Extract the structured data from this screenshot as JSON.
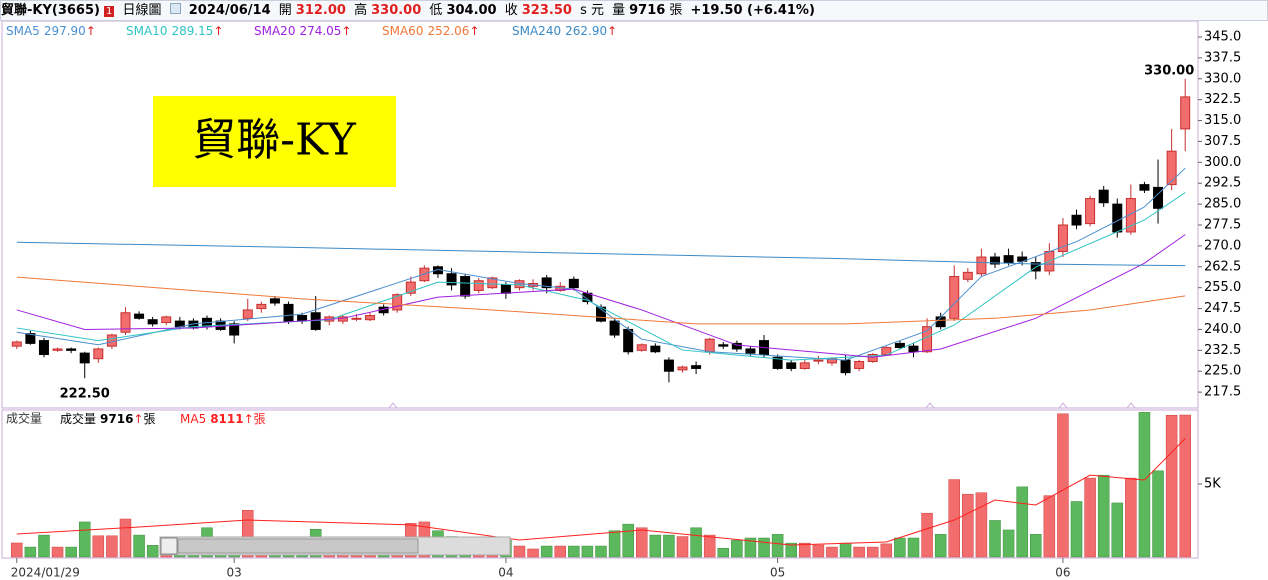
{
  "header": {
    "name": "貿聯-KY(3665)",
    "badge": "1",
    "view": "日線圖",
    "date": "2024/06/14",
    "open_label": "開",
    "open": "312.00",
    "high_label": "高",
    "high": "330.00",
    "low_label": "低",
    "low": "304.00",
    "close_label": "收",
    "close": "323.50",
    "unit": "s 元",
    "volume_label": "量",
    "volume": "9716",
    "volume_unit": "張",
    "change": "+19.50 (+6.41%)"
  },
  "chart_data": [
    {
      "type": "candlestick",
      "title": "貿聯-KY",
      "categories": [
        "2024/01/29",
        null,
        null,
        null,
        null,
        null,
        null,
        null,
        null,
        null,
        null,
        null,
        null,
        null,
        null,
        null,
        "03",
        null,
        null,
        null,
        null,
        null,
        null,
        null,
        null,
        null,
        null,
        null,
        null,
        null,
        null,
        null,
        null,
        null,
        null,
        null,
        "04",
        null,
        null,
        null,
        null,
        null,
        null,
        null,
        null,
        null,
        null,
        null,
        null,
        null,
        null,
        null,
        null,
        null,
        null,
        null,
        "05",
        null,
        null,
        null,
        null,
        null,
        null,
        null,
        null,
        null,
        null,
        null,
        null,
        null,
        null,
        null,
        null,
        null,
        null,
        null,
        null,
        "06",
        null,
        null,
        null,
        null,
        null,
        null,
        null,
        null,
        null
      ],
      "open": [
        234,
        238.5,
        236,
        232.5,
        233,
        231.5,
        229.5,
        234,
        239,
        245.5,
        243.5,
        242.5,
        243,
        243,
        244,
        243,
        242,
        244,
        247.5,
        251,
        249,
        245,
        246,
        243,
        243,
        244,
        243.5,
        248,
        247,
        253,
        257.5,
        262.5,
        260,
        259,
        254,
        255,
        256,
        255,
        255.5,
        258.5,
        254,
        258,
        253,
        248,
        243,
        240,
        232.5,
        234,
        229,
        225.5,
        227,
        232,
        234.5,
        235,
        233,
        236,
        230,
        228,
        226,
        229,
        228,
        229,
        226,
        228.5,
        231,
        235,
        234,
        232,
        244.5,
        244,
        258,
        260,
        266,
        266.5,
        266,
        264,
        261,
        268,
        281,
        278,
        290,
        285,
        275,
        292,
        291,
        292,
        312
      ],
      "high": [
        236,
        239.5,
        237,
        233.5,
        233.5,
        232,
        233.5,
        238.5,
        248,
        246.5,
        244.5,
        245,
        244.5,
        244,
        245,
        244,
        243,
        251,
        250,
        252,
        250,
        246,
        252,
        245,
        245,
        245.5,
        246,
        249,
        253,
        259,
        263,
        263,
        262,
        260,
        258.5,
        259,
        257,
        258,
        258,
        259.5,
        257,
        259,
        254,
        249,
        244,
        241,
        235,
        235,
        230,
        227,
        228.5,
        237,
        235.5,
        236,
        234,
        238,
        231,
        229,
        229,
        230.5,
        230,
        231,
        229,
        231.5,
        234,
        236,
        235,
        244,
        246,
        263,
        262,
        269,
        267.5,
        269,
        268,
        266,
        271,
        280,
        283,
        288,
        291.5,
        287,
        292,
        293,
        301,
        312,
        330
      ],
      "low": [
        233,
        234.5,
        230,
        232,
        231.5,
        222.5,
        228,
        233,
        238,
        243.5,
        241,
        241.5,
        240,
        240,
        240,
        239.5,
        235,
        243,
        246,
        248.5,
        242,
        242,
        239.5,
        241.5,
        242,
        243,
        243,
        245,
        246,
        252,
        257,
        258.5,
        254,
        251,
        253,
        254.5,
        251,
        254,
        254,
        253,
        253.5,
        254,
        249,
        242.5,
        237,
        231,
        232,
        231.5,
        221,
        224.5,
        224,
        231,
        233,
        232,
        230.5,
        230,
        225.5,
        225,
        225.5,
        227.5,
        227,
        223.5,
        225,
        228,
        230.5,
        233,
        230,
        231.5,
        240,
        243,
        257,
        259,
        262,
        263,
        263,
        258,
        259.5,
        266,
        276,
        277,
        284,
        273,
        274,
        289,
        278,
        290,
        304
      ],
      "close": [
        235.5,
        235,
        231,
        233,
        232.5,
        228,
        233,
        238,
        246,
        244,
        242,
        244.5,
        241,
        240.5,
        241,
        240,
        238,
        247,
        249,
        249.5,
        243,
        243,
        240,
        244.5,
        244.5,
        244,
        245,
        246,
        252.5,
        257,
        262,
        260,
        256,
        252,
        257.5,
        258.5,
        253,
        257.5,
        256.5,
        255,
        255.5,
        255,
        250,
        243,
        238,
        232,
        234.5,
        232,
        225,
        226.5,
        226,
        236.5,
        234,
        233,
        231.5,
        231,
        226,
        226,
        228,
        229,
        229.5,
        224.5,
        228.5,
        231,
        233.5,
        233.5,
        232,
        241,
        241,
        259,
        260.5,
        266,
        263.5,
        264,
        264.5,
        261,
        268,
        277.5,
        277.5,
        287,
        285.5,
        275,
        287,
        290,
        283.5,
        304,
        323.5
      ],
      "up_color": "#f26d6d",
      "down_color": "#000000",
      "ylim": [
        211.8,
        351.1
      ],
      "yticks": [
        {
          "value": 345,
          "label": "345.0"
        },
        {
          "value": 337.5,
          "label": "337.5"
        },
        {
          "value": 330,
          "label": "330.0"
        },
        {
          "value": 322.5,
          "label": "322.5"
        },
        {
          "value": 315,
          "label": "315.0"
        },
        {
          "value": 307.5,
          "label": "307.5"
        },
        {
          "value": 300,
          "label": "300.0"
        },
        {
          "value": 292.5,
          "label": "292.5"
        },
        {
          "value": 285,
          "label": "285.0"
        },
        {
          "value": 277.5,
          "label": "277.5"
        },
        {
          "value": 270,
          "label": "270.0"
        },
        {
          "value": 262.5,
          "label": "262.5"
        },
        {
          "value": 255,
          "label": "255.0"
        },
        {
          "value": 247.5,
          "label": "247.5"
        },
        {
          "value": 240,
          "label": "240.0"
        },
        {
          "value": 232.5,
          "label": "232.5"
        },
        {
          "value": 225,
          "label": "225.0"
        },
        {
          "value": 217.5,
          "label": "217.5"
        }
      ],
      "series": [
        {
          "name": "SMA5",
          "color": "#4a8fd0",
          "legend_value": "297.90",
          "trend": "↑",
          "x": [
            0,
            6,
            13,
            21,
            31,
            37,
            41,
            46,
            51,
            61,
            67,
            71,
            78,
            83,
            86
          ],
          "values": [
            239,
            234.5,
            242,
            245.5,
            261.5,
            256.5,
            254.5,
            236.5,
            232,
            229,
            239.5,
            259,
            271.5,
            284,
            297.9
          ]
        },
        {
          "name": "SMA10",
          "color": "#2ec4c4",
          "legend_value": "289.15",
          "trend": "↑",
          "x": [
            0,
            6,
            13,
            23,
            31,
            37,
            42,
            49,
            57,
            64,
            69,
            75,
            83,
            86
          ],
          "values": [
            240.5,
            236,
            241,
            243.5,
            257,
            256,
            250.5,
            232.6,
            229,
            230.8,
            241.6,
            262.4,
            279.3,
            289.15
          ]
        },
        {
          "name": "SMA20",
          "color": "#a020e0",
          "legend_value": "274.05",
          "trend": "↑",
          "x": [
            0,
            5,
            13,
            24,
            31,
            41,
            46,
            53,
            63,
            68,
            75,
            83,
            86
          ],
          "values": [
            247,
            240,
            240.5,
            244,
            251.6,
            254.5,
            247,
            234.4,
            230,
            233,
            244,
            263.8,
            274.05
          ]
        },
        {
          "name": "SMA60",
          "color": "#f07838",
          "legend_value": "252.06",
          "trend": "↑",
          "x": [
            0,
            21,
            35,
            50,
            61,
            72,
            79,
            86
          ],
          "values": [
            258.8,
            251,
            247,
            242,
            242,
            244,
            247,
            252.06
          ]
        },
        {
          "name": "SMA240",
          "color": "#3a8ac8",
          "legend_value": "262.90",
          "trend": "↑",
          "x": [
            0,
            20,
            40,
            60,
            75,
            86
          ],
          "values": [
            271.3,
            269.5,
            267.5,
            265.5,
            263.5,
            262.9
          ]
        }
      ],
      "annotations": [
        {
          "text": "330.00",
          "index": 86,
          "value": 330
        },
        {
          "text": "222.50",
          "index": 5,
          "value": 222.5
        }
      ]
    },
    {
      "type": "bar",
      "title": "成交量",
      "values": [
        960,
        680,
        1500,
        680,
        680,
        2400,
        1450,
        1450,
        2600,
        1500,
        800,
        700,
        1100,
        1200,
        2000,
        900,
        1000,
        3200,
        1300,
        900,
        1100,
        1200,
        1900,
        1000,
        900,
        1100,
        1000,
        1100,
        1000,
        2300,
        2400,
        1800,
        1400,
        1200,
        1000,
        1200,
        1150,
        750,
        550,
        750,
        750,
        750,
        750,
        750,
        1800,
        2250,
        2000,
        1500,
        1500,
        1400,
        2000,
        1500,
        600,
        1150,
        1300,
        1300,
        1550,
        950,
        950,
        820,
        680,
        950,
        680,
        680,
        900,
        1300,
        1300,
        3000,
        1550,
        5300,
        4300,
        4400,
        2500,
        1850,
        4800,
        1550,
        4200,
        9800,
        3800,
        5400,
        5600,
        3700,
        5400,
        9900,
        5900,
        9700,
        9716
      ],
      "up_color": "#f26d6d",
      "down_color": "#5cb85c",
      "ylim": [
        0,
        10060
      ],
      "yticks": [
        {
          "value": 5000,
          "label": "5K"
        }
      ],
      "volume_legend": {
        "name": "成交量",
        "value": "9716",
        "trend": "↑",
        "unit": "張"
      },
      "series": [
        {
          "name": "MA5",
          "color": "#ff2020",
          "legend_value": "8111",
          "trend": "↑",
          "unit": "張",
          "x": [
            0,
            9,
            17,
            29,
            37,
            46,
            57,
            64,
            69,
            72,
            75,
            79,
            83,
            86
          ],
          "values": [
            1570,
            2050,
            2530,
            2200,
            1160,
            1850,
            820,
            1030,
            2530,
            3900,
            3560,
            5600,
            5270,
            8111
          ]
        }
      ]
    }
  ]
}
